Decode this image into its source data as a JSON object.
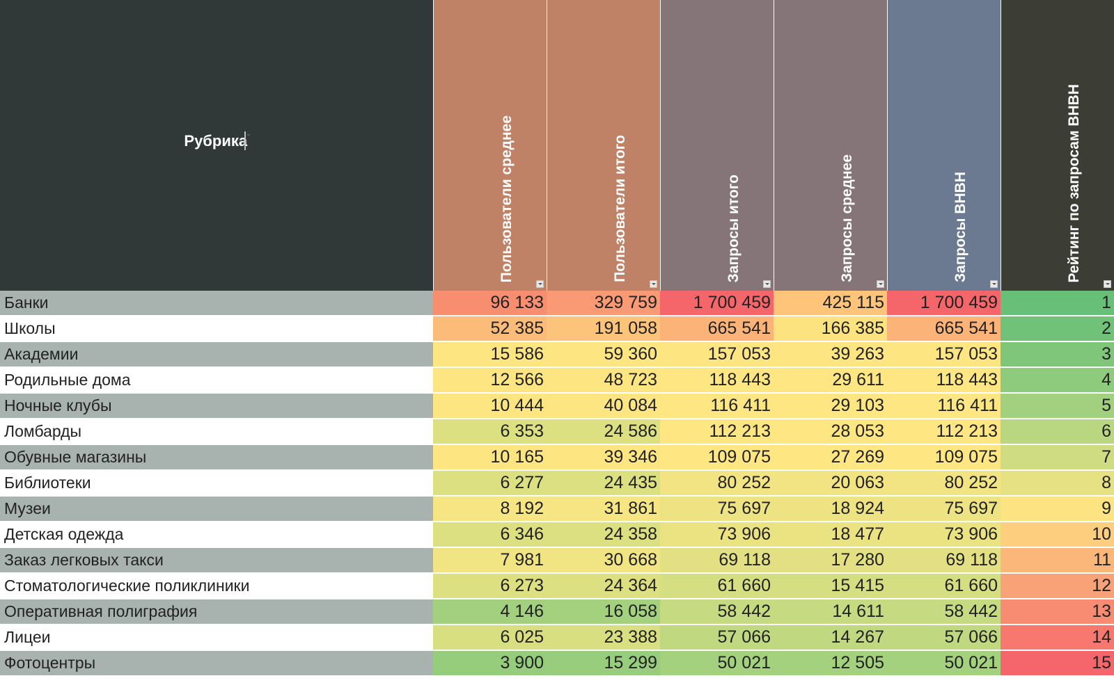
{
  "headers": {
    "rubric": "Рубрика",
    "users_avg": "Пользователи среднее",
    "users_total": "Пользователи итого",
    "requests_total": "Запросы итого",
    "requests_avg": "Запросы среднее",
    "requests_vnvn": "Запросы ВНВН",
    "rating": "Рейтинг по запросам ВНВН"
  },
  "header_colors": {
    "rubric": "#303838",
    "users_avg": "#c08266",
    "users_total": "#c08266",
    "requests_total": "#857579",
    "requests_avg": "#857579",
    "requests_vnvn": "#6b7a90",
    "rating": "#3c3e36"
  },
  "rows": [
    {
      "rubric": "Банки",
      "users_avg": "96 133",
      "users_total": "329 759",
      "requests_total": "1 700 459",
      "requests_avg": "425 115",
      "requests_vnvn": "1 700 459",
      "rating": "1",
      "colors": [
        "#f88e70",
        "#f99a74",
        "#f5666a",
        "#fdc47a",
        "#f5666a",
        "#68bf77"
      ]
    },
    {
      "rubric": "Школы",
      "users_avg": "52 385",
      "users_total": "191 058",
      "requests_total": "665 541",
      "requests_avg": "166 385",
      "requests_vnvn": "665 541",
      "rating": "2",
      "colors": [
        "#fbbb79",
        "#fcc37b",
        "#fbb378",
        "#fde380",
        "#fbb378",
        "#70c278"
      ]
    },
    {
      "rubric": "Академии",
      "users_avg": "15 586",
      "users_total": "59 360",
      "requests_total": "157 053",
      "requests_avg": "39 263",
      "requests_vnvn": "157 053",
      "rating": "3",
      "colors": [
        "#fde582",
        "#fde582",
        "#fde582",
        "#fde582",
        "#fde582",
        "#7fc67a"
      ]
    },
    {
      "rubric": "Родильные дома",
      "users_avg": "12 566",
      "users_total": "48 723",
      "requests_total": "118 443",
      "requests_avg": "29 611",
      "requests_vnvn": "118 443",
      "rating": "4",
      "colors": [
        "#fde582",
        "#fde582",
        "#fee683",
        "#fee683",
        "#fee683",
        "#8fcb7c"
      ]
    },
    {
      "rubric": "Ночные клубы",
      "users_avg": "10 444",
      "users_total": "40 084",
      "requests_total": "116 411",
      "requests_avg": "29 103",
      "requests_vnvn": "116 411",
      "rating": "5",
      "colors": [
        "#fde582",
        "#fde582",
        "#fee683",
        "#fee683",
        "#fee683",
        "#a1d07e"
      ]
    },
    {
      "rubric": "Ломбарды",
      "users_avg": "6 353",
      "users_total": "24 586",
      "requests_total": "112 213",
      "requests_avg": "28 053",
      "requests_vnvn": "112 213",
      "rating": "6",
      "colors": [
        "#dce081",
        "#dde081",
        "#fee683",
        "#fee683",
        "#fee683",
        "#b8d780"
      ]
    },
    {
      "rubric": "Обувные магазины",
      "users_avg": "10 165",
      "users_total": "39 346",
      "requests_total": "109 075",
      "requests_avg": "27 269",
      "requests_vnvn": "109 075",
      "rating": "7",
      "colors": [
        "#fde582",
        "#fde582",
        "#fee683",
        "#fee683",
        "#fee683",
        "#cfdc81"
      ]
    },
    {
      "rubric": "Библиотеки",
      "users_avg": "6 277",
      "users_total": "24 435",
      "requests_total": "80 252",
      "requests_avg": "20 063",
      "requests_vnvn": "80 252",
      "rating": "8",
      "colors": [
        "#dce081",
        "#dce081",
        "#f2e482",
        "#f2e482",
        "#f2e482",
        "#e6e283"
      ]
    },
    {
      "rubric": "Музеи",
      "users_avg": "8 192",
      "users_total": "31 861",
      "requests_total": "75 697",
      "requests_avg": "18 924",
      "requests_vnvn": "75 697",
      "rating": "9",
      "colors": [
        "#f5e583",
        "#f5e583",
        "#eee382",
        "#eee382",
        "#eee382",
        "#fde382"
      ]
    },
    {
      "rubric": "Детская одежда",
      "users_avg": "6 346",
      "users_total": "24 358",
      "requests_total": "73 906",
      "requests_avg": "18 477",
      "requests_vnvn": "73 906",
      "rating": "10",
      "colors": [
        "#dce081",
        "#dce081",
        "#ebe282",
        "#ebe282",
        "#ebe282",
        "#fdce7e"
      ]
    },
    {
      "rubric": "Заказ легковых такси",
      "users_avg": "7 981",
      "users_total": "30 668",
      "requests_total": "69 118",
      "requests_avg": "17 280",
      "requests_vnvn": "69 118",
      "rating": "11",
      "colors": [
        "#f0e483",
        "#f0e483",
        "#e2e082",
        "#e2e082",
        "#e2e082",
        "#fbb77a"
      ]
    },
    {
      "rubric": "Стоматологические поликлиники",
      "users_avg": "6 273",
      "users_total": "24 364",
      "requests_total": "61 660",
      "requests_avg": "15 415",
      "requests_vnvn": "61 660",
      "rating": "12",
      "colors": [
        "#dce081",
        "#dce081",
        "#d5de81",
        "#d5de81",
        "#d5de81",
        "#f9a277"
      ]
    },
    {
      "rubric": "Оперативная полиграфия",
      "users_avg": "4 146",
      "users_total": "16 058",
      "requests_total": "58 442",
      "requests_avg": "14 611",
      "requests_vnvn": "58 442",
      "rating": "13",
      "colors": [
        "#a2d07e",
        "#a4d17e",
        "#c6da81",
        "#c6da81",
        "#c6da81",
        "#f78c73"
      ]
    },
    {
      "rubric": "Лицеи",
      "users_avg": "6 025",
      "users_total": "23 388",
      "requests_total": "57 066",
      "requests_avg": "14 267",
      "requests_vnvn": "57 066",
      "rating": "14",
      "colors": [
        "#d8df81",
        "#d8df81",
        "#c0d880",
        "#c0d880",
        "#c0d880",
        "#f6786f"
      ]
    },
    {
      "rubric": "Фотоцентры",
      "users_avg": "3 900",
      "users_total": "15 299",
      "requests_total": "50 021",
      "requests_avg": "12 505",
      "requests_vnvn": "50 021",
      "rating": "15",
      "colors": [
        "#96cd7d",
        "#98cd7d",
        "#a4d17e",
        "#a4d17e",
        "#a4d17e",
        "#f4666b"
      ]
    }
  ]
}
